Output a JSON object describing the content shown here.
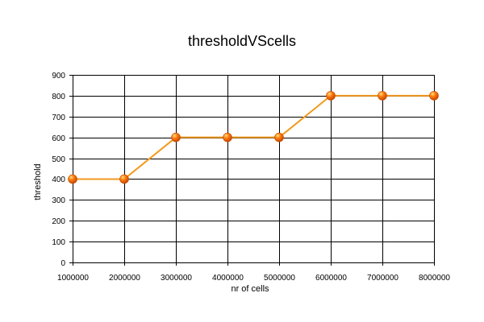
{
  "chart_data": {
    "type": "line",
    "title": "thresholdVScells",
    "xlabel": "nr of cells",
    "ylabel": "threshold",
    "x": [
      1000000,
      2000000,
      3000000,
      4000000,
      5000000,
      6000000,
      7000000,
      8000000
    ],
    "x_tick_labels": [
      "1000000",
      "2000000",
      "3000000",
      "4000000",
      "5000000",
      "6000000",
      "7000000",
      "8000000"
    ],
    "y_ticks": [
      0,
      100,
      200,
      300,
      400,
      500,
      600,
      700,
      800,
      900
    ],
    "ylim": [
      0,
      900
    ],
    "grid": true,
    "legend": "none",
    "series": [
      {
        "values": [
          400,
          400,
          600,
          600,
          600,
          800,
          800,
          800
        ]
      }
    ],
    "colors": {
      "line": "#f29a1f",
      "marker_fill": "#ff7a10",
      "marker_edge": "#c64a00",
      "grid": "#000000",
      "plot_background": "#ffffff"
    }
  }
}
